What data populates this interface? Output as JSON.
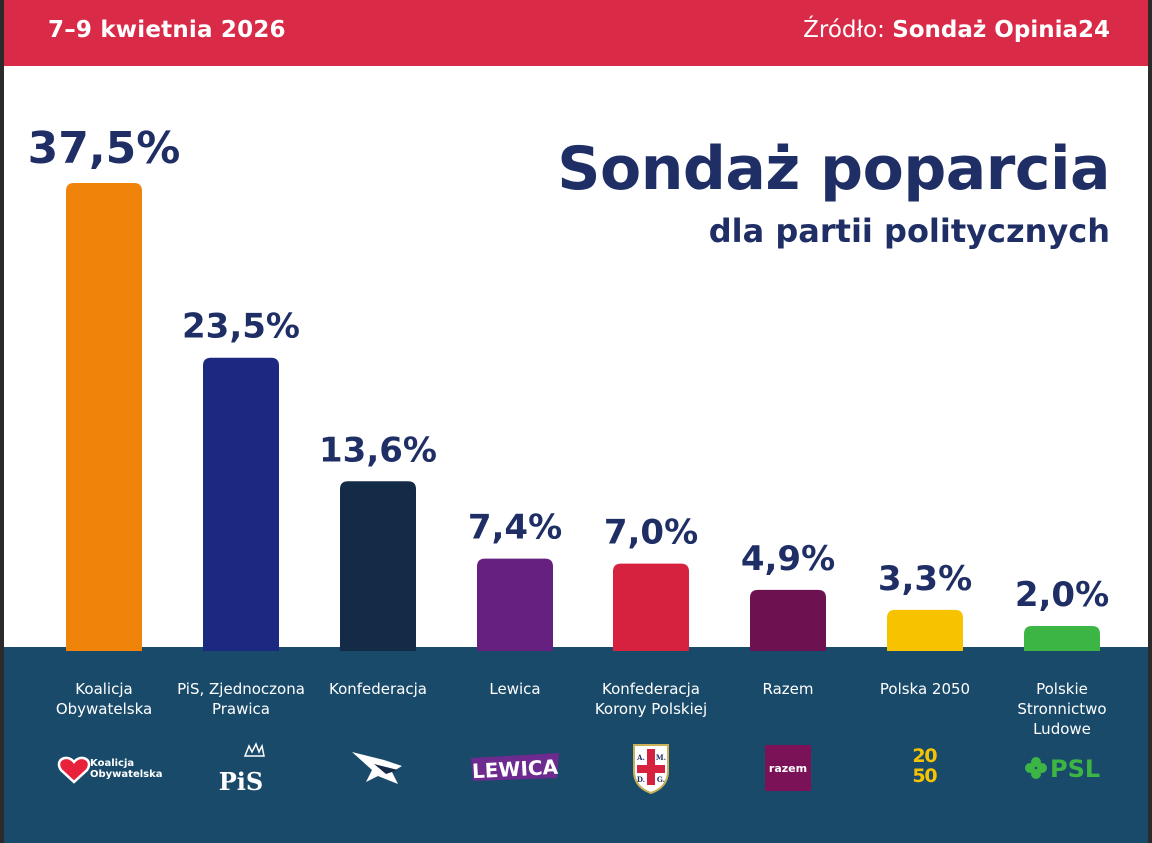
{
  "header": {
    "date": "7–9 kwietnia 2026",
    "source_prefix": "Źródło:",
    "source_name": "Sondaż Opinia24"
  },
  "title": "Sondaż poparcia",
  "subtitle": "dla partii politycznych",
  "colors": {
    "header_bg": "#d92a47",
    "base_bg": "#194a6a",
    "title": "#1f2f66"
  },
  "chart_data": {
    "type": "bar",
    "title": "Sondaż poparcia",
    "subtitle": "dla partii politycznych",
    "unit": "%",
    "ylim": [
      0,
      37.5
    ],
    "grid": false,
    "categories": [
      [
        "Koalicja",
        "Obywatelska"
      ],
      [
        "PiS, Zjednoczona",
        "Prawica"
      ],
      [
        "Konfederacja"
      ],
      [
        "Lewica"
      ],
      [
        "Konfederacja",
        "Korony Polskiej"
      ],
      [
        "Razem"
      ],
      [
        "Polska 2050"
      ],
      [
        "Polskie",
        "Stronnictwo",
        "Ludowe"
      ]
    ],
    "values": [
      37.5,
      23.5,
      13.6,
      7.4,
      7.0,
      4.9,
      3.3,
      2.0
    ],
    "value_labels": [
      "37,5%",
      "23,5%",
      "13,6%",
      "7,4%",
      "7,0%",
      "4,9%",
      "3,3%",
      "2,0%"
    ],
    "bar_colors": [
      "#f0840b",
      "#1c2980",
      "#142b48",
      "#66207f",
      "#d6213f",
      "#6d1251",
      "#f7c300",
      "#3cb544"
    ],
    "logos": [
      {
        "icon": "heart-icon",
        "text": "Koalicja Obywatelska"
      },
      {
        "icon": "pis-logo",
        "text": "PiS"
      },
      {
        "icon": "eagle-icon",
        "text": ""
      },
      {
        "icon": "lewica-logo",
        "text": "LEWICA"
      },
      {
        "icon": "shield-icon",
        "text": "A. M. D. G."
      },
      {
        "icon": "razem-logo",
        "text": "razem"
      },
      {
        "icon": "polska2050-logo",
        "text": "2050"
      },
      {
        "icon": "clover-icon",
        "text": "PSL"
      }
    ]
  }
}
